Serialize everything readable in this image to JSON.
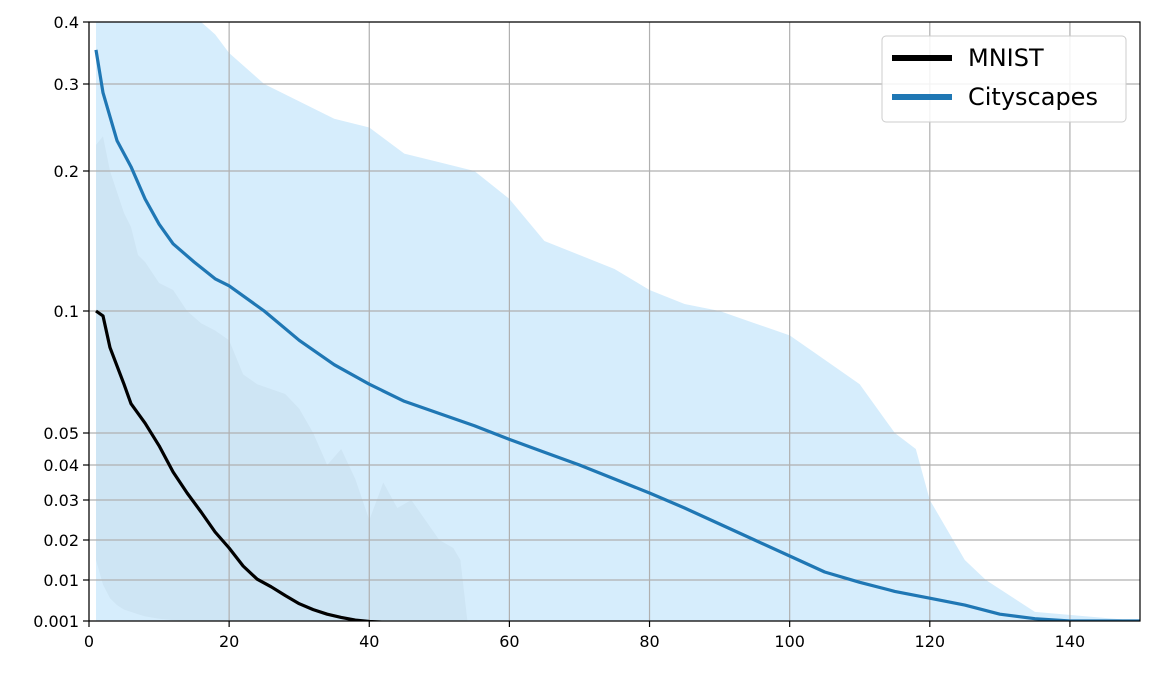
{
  "chart_data": {
    "type": "line",
    "title": "",
    "xlabel": "",
    "ylabel": "",
    "xlim": [
      0,
      150
    ],
    "ylim": [
      0.001,
      0.4
    ],
    "y_scale": "nonuniform (compressed low range)",
    "grid": true,
    "legend_position": "top-right",
    "xticks": [
      0,
      20,
      40,
      60,
      80,
      100,
      120,
      140
    ],
    "yticks": [
      0.001,
      0.01,
      0.02,
      0.03,
      0.04,
      0.05,
      0.1,
      0.2,
      0.3,
      0.4
    ],
    "ytick_labels": [
      "0.001",
      "0.01",
      "0.02",
      "0.03",
      "0.04",
      "0.05",
      "0.1",
      "0.2",
      "0.3",
      "0.4"
    ],
    "xtick_labels": [
      "0",
      "20",
      "40",
      "60",
      "80",
      "100",
      "120",
      "140"
    ],
    "series": [
      {
        "name": "MNIST",
        "color": "#000000",
        "band_color": "#c8c8c8",
        "x": [
          1,
          2,
          3,
          5,
          6,
          8,
          10,
          12,
          14,
          16,
          18,
          20,
          22,
          24,
          26,
          28,
          30,
          32,
          34,
          36,
          38,
          40,
          45,
          50,
          55,
          63
        ],
        "y": [
          0.1,
          0.098,
          0.085,
          0.07,
          0.062,
          0.054,
          0.046,
          0.038,
          0.032,
          0.027,
          0.022,
          0.018,
          0.0135,
          0.0102,
          0.0085,
          0.0066,
          0.0048,
          0.0035,
          0.0025,
          0.0018,
          0.0012,
          0.0009,
          0.0005,
          0.0003,
          0.0002,
          0.0001
        ],
        "band_x": [
          1,
          2,
          3,
          4,
          5,
          6,
          7,
          8,
          10,
          12,
          14,
          16,
          18,
          20,
          22,
          24,
          26,
          28,
          30,
          32,
          34,
          36,
          38,
          40,
          42,
          44,
          46,
          48,
          50,
          52,
          53,
          54
        ],
        "band_upper": [
          0.23,
          0.24,
          0.2,
          0.185,
          0.17,
          0.16,
          0.14,
          0.135,
          0.12,
          0.115,
          0.1,
          0.095,
          0.092,
          0.088,
          0.074,
          0.07,
          0.068,
          0.066,
          0.06,
          0.05,
          0.04,
          0.045,
          0.036,
          0.025,
          0.035,
          0.028,
          0.03,
          0.025,
          0.02,
          0.018,
          0.015,
          0.001
        ],
        "band_lower": [
          0.015,
          0.009,
          0.006,
          0.0045,
          0.0035,
          0.003,
          0.0025,
          0.002,
          0.0015,
          0.0012,
          0.001,
          0.001,
          0.001,
          0.001,
          0.001,
          0.001,
          0.001,
          0.001,
          0.001,
          0.001,
          0.001,
          0.001,
          0.001,
          0.001,
          0.001,
          0.001,
          0.001,
          0.001,
          0.001,
          0.001,
          0.001,
          0.001
        ]
      },
      {
        "name": "Cityscapes",
        "color": "#1f77b4",
        "band_color": "#cce8fb",
        "x": [
          1,
          2,
          4,
          6,
          8,
          10,
          12,
          15,
          18,
          20,
          25,
          30,
          35,
          40,
          45,
          50,
          55,
          60,
          65,
          70,
          75,
          80,
          85,
          90,
          95,
          100,
          105,
          110,
          115,
          120,
          125,
          130,
          135,
          140,
          150
        ],
        "y": [
          0.355,
          0.29,
          0.235,
          0.205,
          0.18,
          0.162,
          0.148,
          0.135,
          0.123,
          0.118,
          0.1,
          0.088,
          0.078,
          0.07,
          0.063,
          0.058,
          0.053,
          0.048,
          0.044,
          0.04,
          0.036,
          0.032,
          0.028,
          0.024,
          0.02,
          0.016,
          0.012,
          0.0095,
          0.0075,
          0.006,
          0.0045,
          0.0025,
          0.0015,
          0.001,
          0.001
        ],
        "band_x": [
          1,
          16,
          18,
          20,
          25,
          30,
          35,
          40,
          45,
          50,
          55,
          60,
          65,
          70,
          75,
          80,
          85,
          90,
          95,
          100,
          105,
          110,
          115,
          118,
          120,
          125,
          128,
          130,
          135,
          150
        ],
        "band_upper": [
          0.4,
          0.4,
          0.38,
          0.35,
          0.3,
          0.28,
          0.26,
          0.25,
          0.22,
          0.21,
          0.2,
          0.18,
          0.15,
          0.14,
          0.13,
          0.115,
          0.105,
          0.1,
          0.095,
          0.09,
          0.08,
          0.07,
          0.05,
          0.045,
          0.03,
          0.015,
          0.01,
          0.008,
          0.003,
          0.001
        ],
        "band_lower": [
          0.001,
          0.001,
          0.001,
          0.001,
          0.001,
          0.001,
          0.001,
          0.001,
          0.001,
          0.001,
          0.001,
          0.001,
          0.001,
          0.001,
          0.001,
          0.001,
          0.001,
          0.001,
          0.001,
          0.001,
          0.001,
          0.001,
          0.001,
          0.001,
          0.001,
          0.001,
          0.001,
          0.001,
          0.001,
          0.001
        ]
      }
    ]
  }
}
